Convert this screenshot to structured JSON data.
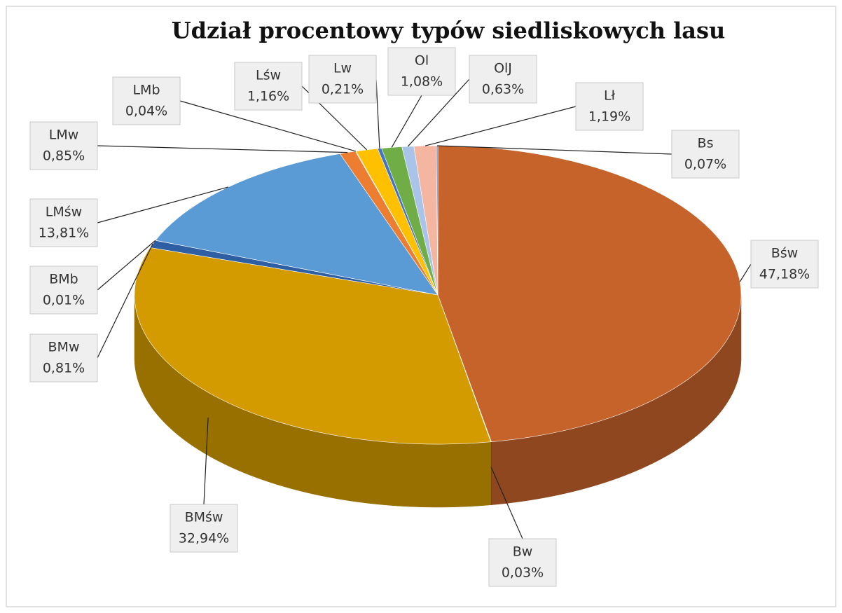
{
  "chart_data": {
    "type": "pie3d",
    "title": "Udział procentowy typów siedliskowych lasu",
    "categories": [
      "Bśw",
      "Bw",
      "BMśw",
      "BMw",
      "BMb",
      "LMśw",
      "LMw",
      "LMb",
      "Lśw",
      "Lw",
      "Ol",
      "OlJ",
      "Lł",
      "Bs"
    ],
    "values": [
      47.18,
      0.03,
      32.94,
      0.81,
      0.01,
      13.81,
      0.85,
      0.04,
      1.16,
      0.21,
      1.08,
      0.63,
      1.19,
      0.07
    ],
    "value_labels": [
      "47,18%",
      "0,03%",
      "32,94%",
      "0,81%",
      "0,01%",
      "13,81%",
      "0,85%",
      "0,04%",
      "1,16%",
      "0,21%",
      "1,08%",
      "0,63%",
      "1,19%",
      "0,07%"
    ],
    "colors": [
      "#c5632a",
      "#7f6000",
      "#d39b00",
      "#2e5fa3",
      "#264478",
      "#5b9bd5",
      "#ed7d31",
      "#a5a5a5",
      "#ffc000",
      "#4472c4",
      "#70ad47",
      "#a9c4e8",
      "#f4b6a0",
      "#5b87c8"
    ]
  }
}
